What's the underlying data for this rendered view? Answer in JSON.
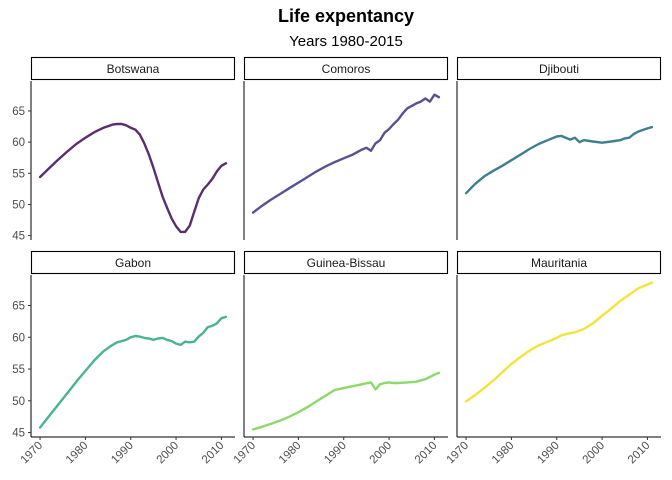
{
  "chart_data": {
    "type": "line",
    "title": "Life expentancy",
    "subtitle": "Years 1980-2015",
    "xlabel": "",
    "ylabel": "",
    "xlim": [
      1968,
      2013
    ],
    "ylim": [
      44.3,
      69.8
    ],
    "x_ticks": [
      1970,
      1980,
      1990,
      2000,
      2010
    ],
    "y_ticks": [
      45,
      50,
      55,
      60,
      65
    ],
    "grid": false,
    "legend": "none",
    "layout": "facets 3 columns x 2 rows",
    "series": [
      {
        "name": "Botswana",
        "color": "#5A2E6B",
        "x": [
          1970,
          1972,
          1974,
          1976,
          1978,
          1980,
          1982,
          1984,
          1986,
          1987,
          1988,
          1989,
          1990,
          1991,
          1992,
          1993,
          1994,
          1995,
          1996,
          1997,
          1998,
          1999,
          2000,
          2001,
          2002,
          2003,
          2004,
          2005,
          2006,
          2007,
          2008,
          2009,
          2010,
          2011
        ],
        "y": [
          54.4,
          55.8,
          57.2,
          58.5,
          59.7,
          60.7,
          61.6,
          62.3,
          62.8,
          62.9,
          62.9,
          62.7,
          62.3,
          62.0,
          61.2,
          59.8,
          58.0,
          55.9,
          53.6,
          51.3,
          49.5,
          47.8,
          46.5,
          45.6,
          45.6,
          46.6,
          48.8,
          51.0,
          52.4,
          53.2,
          54.1,
          55.3,
          56.2,
          56.6
        ]
      },
      {
        "name": "Comoros",
        "color": "#575290",
        "x": [
          1970,
          1972,
          1974,
          1976,
          1978,
          1980,
          1982,
          1984,
          1986,
          1988,
          1990,
          1992,
          1994,
          1995,
          1996,
          1997,
          1998,
          1999,
          2000,
          2001,
          2002,
          2003,
          2004,
          2005,
          2006,
          2007,
          2008,
          2009,
          2010,
          2011
        ],
        "y": [
          48.7,
          49.8,
          50.8,
          51.7,
          52.6,
          53.5,
          54.4,
          55.3,
          56.1,
          56.8,
          57.4,
          58.0,
          58.8,
          59.1,
          58.6,
          59.8,
          60.3,
          61.5,
          62.1,
          62.9,
          63.6,
          64.6,
          65.4,
          65.8,
          66.2,
          66.5,
          67.0,
          66.5,
          67.6,
          67.2
        ]
      },
      {
        "name": "Djibouti",
        "color": "#3E7E91",
        "x": [
          1970,
          1972,
          1974,
          1976,
          1978,
          1980,
          1982,
          1984,
          1986,
          1988,
          1990,
          1991,
          1992,
          1993,
          1994,
          1995,
          1996,
          1998,
          2000,
          2002,
          2004,
          2005,
          2006,
          2007,
          2008,
          2010,
          2011
        ],
        "y": [
          51.8,
          53.3,
          54.5,
          55.4,
          56.2,
          57.1,
          58.0,
          58.9,
          59.7,
          60.3,
          60.9,
          61.0,
          60.7,
          60.4,
          60.7,
          60.0,
          60.3,
          60.1,
          59.9,
          60.1,
          60.3,
          60.6,
          60.7,
          61.3,
          61.7,
          62.2,
          62.4
        ]
      },
      {
        "name": "Gabon",
        "color": "#4AB48E",
        "x": [
          1970,
          1972,
          1974,
          1976,
          1978,
          1980,
          1982,
          1984,
          1986,
          1987,
          1988,
          1989,
          1990,
          1991,
          1992,
          1993,
          1994,
          1995,
          1996,
          1997,
          1998,
          1999,
          2000,
          2001,
          2002,
          2003,
          2004,
          2005,
          2006,
          2007,
          2008,
          2009,
          2010,
          2011
        ],
        "y": [
          45.8,
          47.6,
          49.4,
          51.2,
          53.0,
          54.7,
          56.4,
          57.8,
          58.8,
          59.2,
          59.4,
          59.6,
          60.0,
          60.2,
          60.1,
          59.9,
          59.8,
          59.6,
          59.8,
          59.9,
          59.6,
          59.4,
          59.0,
          58.8,
          59.3,
          59.2,
          59.3,
          60.1,
          60.7,
          61.6,
          61.8,
          62.2,
          63.0,
          63.2
        ]
      },
      {
        "name": "Guinea-Bissau",
        "color": "#8DD86B",
        "x": [
          1970,
          1972,
          1974,
          1976,
          1978,
          1980,
          1982,
          1984,
          1986,
          1988,
          1990,
          1992,
          1994,
          1996,
          1997,
          1998,
          1999,
          2000,
          2001,
          2002,
          2004,
          2006,
          2008,
          2010,
          2011
        ],
        "y": [
          45.5,
          45.9,
          46.4,
          46.9,
          47.5,
          48.2,
          49.0,
          49.9,
          50.8,
          51.7,
          52.0,
          52.3,
          52.6,
          52.9,
          51.8,
          52.6,
          52.8,
          52.9,
          52.8,
          52.8,
          52.9,
          53.0,
          53.4,
          54.1,
          54.4
        ]
      },
      {
        "name": "Mauritania",
        "color": "#F2E43A",
        "x": [
          1970,
          1972,
          1974,
          1976,
          1978,
          1980,
          1982,
          1984,
          1986,
          1988,
          1990,
          1991,
          1992,
          1994,
          1996,
          1998,
          2000,
          2002,
          2004,
          2006,
          2008,
          2010,
          2011
        ],
        "y": [
          49.9,
          50.9,
          52.0,
          53.2,
          54.5,
          55.8,
          56.9,
          57.9,
          58.7,
          59.3,
          59.9,
          60.3,
          60.5,
          60.8,
          61.3,
          62.2,
          63.4,
          64.5,
          65.7,
          66.7,
          67.7,
          68.3,
          68.6
        ]
      }
    ]
  }
}
